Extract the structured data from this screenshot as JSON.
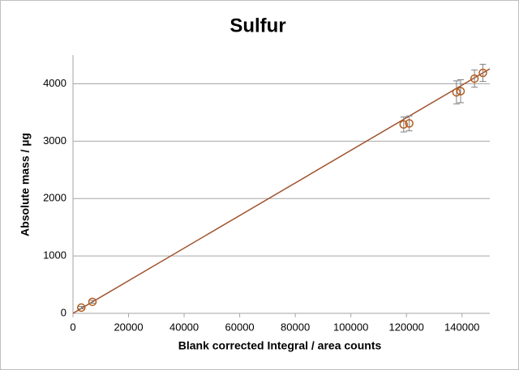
{
  "chart_data": {
    "type": "scatter",
    "title": "Sulfur",
    "x_label": "Blank corrected Integral / area counts",
    "y_label": "Absolute mass / µg",
    "series": [
      {
        "name": "Sulfur",
        "color": "#b35c1e",
        "x": [
          3000,
          7000,
          119000,
          121000,
          138000,
          139500,
          144500,
          147500
        ],
        "values": [
          100,
          200,
          3290,
          3310,
          3850,
          3870,
          4090,
          4190
        ],
        "errors": [
          20,
          25,
          130,
          130,
          200,
          200,
          150,
          150
        ]
      }
    ],
    "trendline": {
      "color": "#a0522d",
      "x": [
        0,
        150000
      ],
      "y": [
        0,
        4260
      ]
    },
    "xlim": [
      0,
      150000
    ],
    "xticks": [
      0,
      20000,
      40000,
      60000,
      80000,
      100000,
      120000,
      140000
    ],
    "ylim": [
      0,
      4500
    ],
    "yticks": [
      0,
      1000,
      2000,
      3000,
      4000
    ],
    "grid": true
  }
}
